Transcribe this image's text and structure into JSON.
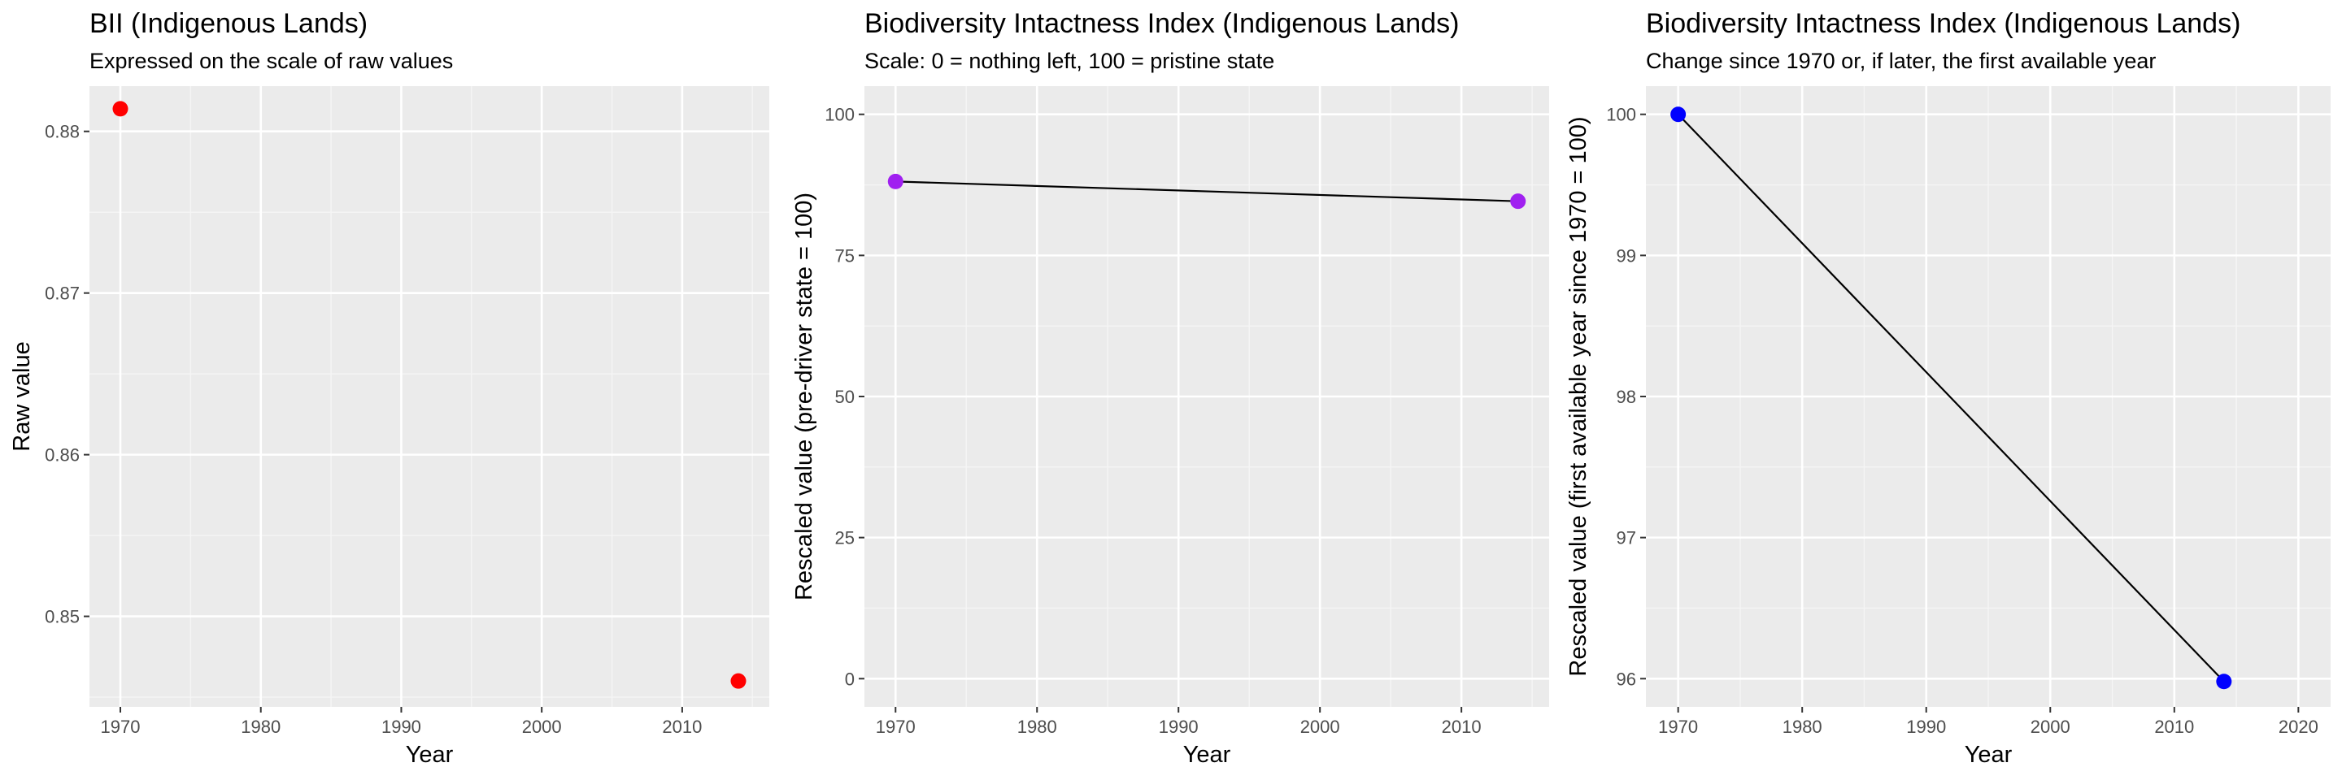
{
  "chart_data": [
    {
      "type": "scatter",
      "title": "BII (Indigenous Lands)",
      "subtitle": "Expressed on the scale of raw values",
      "xlabel": "Year",
      "ylabel": "Raw value",
      "xlim": [
        1967.8,
        2016.2
      ],
      "ylim": [
        0.8444,
        0.8828
      ],
      "xticks": [
        1970,
        1980,
        1990,
        2000,
        2010
      ],
      "xtick_labels": [
        "1970",
        "1980",
        "1990",
        "2000",
        "2010"
      ],
      "yticks": [
        0.85,
        0.86,
        0.87,
        0.88
      ],
      "ytick_labels": [
        "0.85",
        "0.86",
        "0.87",
        "0.88"
      ],
      "grid": true,
      "series": [
        {
          "x": [
            1970,
            2014
          ],
          "y": [
            0.8814,
            0.846
          ],
          "color": "#ff0000",
          "line": false
        }
      ]
    },
    {
      "type": "line",
      "title": "Biodiversity Intactness Index (Indigenous Lands)",
      "subtitle": "Scale: 0 = nothing left, 100 = pristine state",
      "xlabel": "Year",
      "ylabel": "Rescaled value (pre-driver state = 100)",
      "xlim": [
        1967.8,
        2016.2
      ],
      "ylim": [
        -5,
        105
      ],
      "xticks": [
        1970,
        1980,
        1990,
        2000,
        2010
      ],
      "xtick_labels": [
        "1970",
        "1980",
        "1990",
        "2000",
        "2010"
      ],
      "yticks": [
        0,
        25,
        50,
        75,
        100
      ],
      "ytick_labels": [
        "0",
        "25",
        "50",
        "75",
        "100"
      ],
      "grid": true,
      "series": [
        {
          "x": [
            1970,
            2014
          ],
          "y": [
            88.1,
            84.6
          ],
          "color": "#a020f0",
          "line": true
        }
      ]
    },
    {
      "type": "line",
      "title": "Biodiversity Intactness Index (Indigenous Lands)",
      "subtitle": "Change since 1970 or, if later, the first available year",
      "xlabel": "Year",
      "ylabel": "Rescaled value (first available year since 1970 = 100)",
      "xlim": [
        1967.4,
        2022.6
      ],
      "ylim": [
        95.8,
        100.2
      ],
      "xticks": [
        1970,
        1980,
        1990,
        2000,
        2010,
        2020
      ],
      "xtick_labels": [
        "1970",
        "1980",
        "1990",
        "2000",
        "2010",
        "2020"
      ],
      "yticks": [
        96,
        97,
        98,
        99,
        100
      ],
      "ytick_labels": [
        "96",
        "97",
        "98",
        "99",
        "100"
      ],
      "grid": true,
      "series": [
        {
          "x": [
            1970,
            2014
          ],
          "y": [
            100,
            95.98
          ],
          "color": "#0000ff",
          "line": true
        }
      ]
    }
  ]
}
